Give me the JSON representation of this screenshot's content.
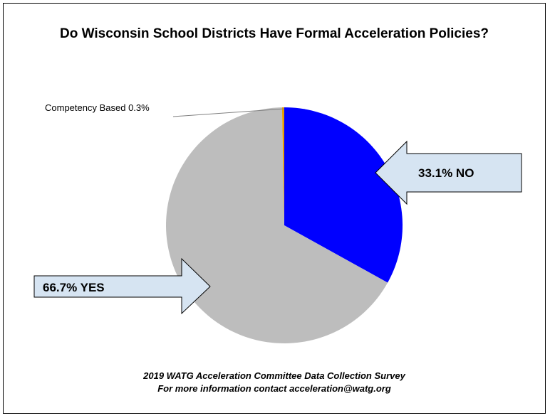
{
  "chart_data": {
    "type": "pie",
    "title": "Do Wisconsin School Districts Have Formal Acceleration Policies?",
    "slices": [
      {
        "label": "NO",
        "value": 33.1,
        "color": "#0000FF",
        "callout": "33.1% NO"
      },
      {
        "label": "YES",
        "value": 66.7,
        "color": "#BDBDBD",
        "callout": "66.7% YES"
      },
      {
        "label": "Competency Based",
        "value": 0.3,
        "color": "#E69F00",
        "callout": "Competency Based 0.3%"
      }
    ],
    "footer": [
      "2019 WATG Acceleration Committee Data Collection Survey",
      "For more information contact acceleration@watg.org"
    ]
  },
  "colors": {
    "arrow_fill": "#D6E4F2",
    "arrow_stroke": "#000000"
  }
}
